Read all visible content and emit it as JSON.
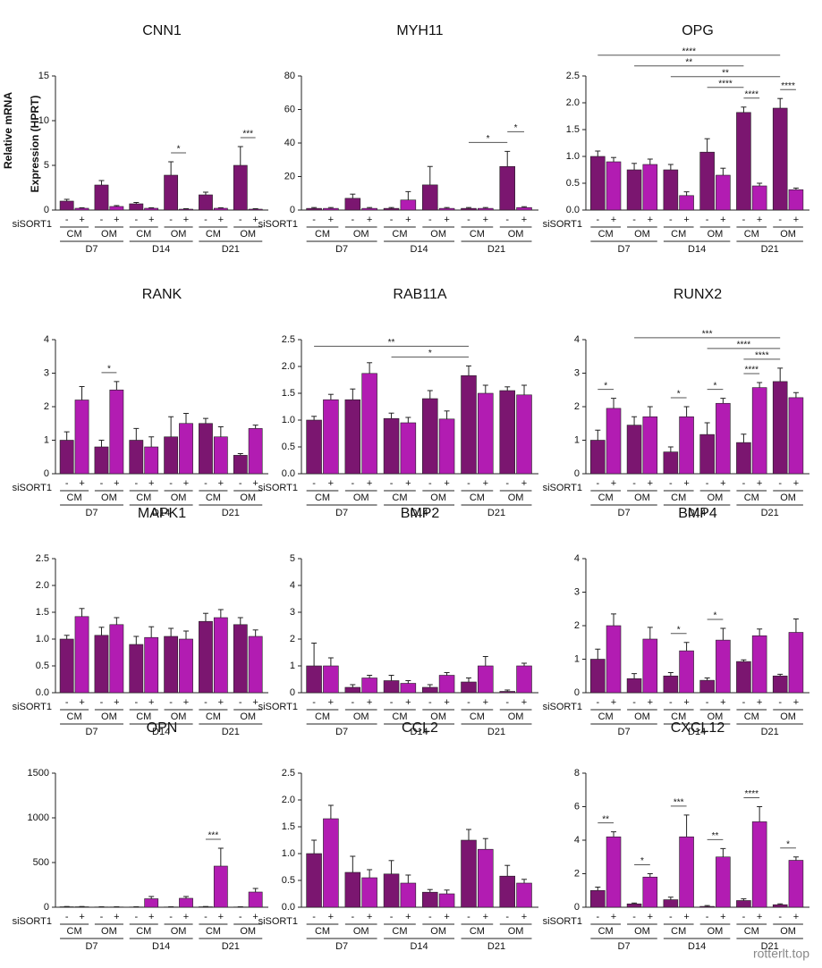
{
  "shared": {
    "row_label": "siSORT1",
    "signs": [
      "-",
      "+"
    ],
    "media": [
      "CM",
      "OM"
    ],
    "days": [
      "D7",
      "D14",
      "D21"
    ],
    "colors": [
      "#7b1670",
      "#b21cb2"
    ],
    "watermark": "rotterlt.top"
  },
  "chart_data": [
    {
      "type": "bar",
      "title": "CNN1",
      "ylabel": [
        "Relative mRNA",
        "Expression (HPRT)"
      ],
      "ylim": [
        0,
        15
      ],
      "yticks": [
        0,
        5,
        10,
        15
      ],
      "values": [
        1.0,
        0.2,
        2.8,
        0.4,
        0.7,
        0.2,
        3.9,
        0.1,
        1.7,
        0.2,
        5.0,
        0.1
      ],
      "errors": [
        0.2,
        0.05,
        0.5,
        0.1,
        0.15,
        0.05,
        1.5,
        0.05,
        0.3,
        0.05,
        2.1,
        0.05
      ],
      "significance": [
        {
          "label": "*",
          "from": 6,
          "to": 7
        },
        {
          "label": "***",
          "from": 10,
          "to": 11
        }
      ]
    },
    {
      "type": "bar",
      "title": "MYH11",
      "ylim": [
        0,
        80
      ],
      "yticks": [
        0,
        20,
        40,
        60,
        80
      ],
      "values": [
        1,
        1,
        7,
        1,
        1,
        6,
        15,
        1,
        1,
        1,
        26,
        1.5
      ],
      "errors": [
        0.5,
        0.5,
        2.5,
        0.5,
        0.5,
        5,
        11,
        0.5,
        0.5,
        0.5,
        9,
        0.5
      ],
      "significance": [
        {
          "label": "*",
          "from": 8,
          "to": 10
        },
        {
          "label": "*",
          "from": 10,
          "to": 11
        }
      ]
    },
    {
      "type": "bar",
      "title": "OPG",
      "ylim": [
        0,
        2.5
      ],
      "yticks": [
        {
          "value": 0,
          "label": "0.0"
        },
        0.5,
        {
          "value": 1,
          "label": "1.0"
        },
        1.5,
        {
          "value": 2,
          "label": "2.0"
        },
        2.5
      ],
      "values": [
        1.0,
        0.9,
        0.75,
        0.85,
        0.75,
        0.27,
        1.08,
        0.65,
        1.82,
        0.45,
        1.9,
        0.38
      ],
      "errors": [
        0.1,
        0.08,
        0.12,
        0.1,
        0.1,
        0.07,
        0.25,
        0.13,
        0.1,
        0.05,
        0.18,
        0.03
      ],
      "significance": [
        {
          "label": "****",
          "from": 8,
          "to": 9
        },
        {
          "label": "****",
          "from": 10,
          "to": 11
        },
        {
          "label": "****",
          "from": 6,
          "to": 8
        },
        {
          "label": "**",
          "from": 4,
          "to": 10
        },
        {
          "label": "**",
          "from": 2,
          "to": 8
        },
        {
          "label": "****",
          "from": 0,
          "to": 10
        }
      ]
    },
    {
      "type": "bar",
      "title": "RANK",
      "ylim": [
        0,
        4
      ],
      "yticks": [
        0,
        1,
        2,
        3,
        4
      ],
      "values": [
        1.0,
        2.2,
        0.8,
        2.5,
        1.0,
        0.8,
        1.1,
        1.5,
        1.5,
        1.1,
        0.55,
        1.35
      ],
      "errors": [
        0.25,
        0.4,
        0.2,
        0.25,
        0.35,
        0.3,
        0.6,
        0.3,
        0.15,
        0.3,
        0.05,
        0.1
      ],
      "significance": [
        {
          "label": "*",
          "from": 2,
          "to": 3
        }
      ]
    },
    {
      "type": "bar",
      "title": "RAB11A",
      "ylim": [
        0,
        2.5
      ],
      "yticks": [
        {
          "value": 0,
          "label": "0.0"
        },
        0.5,
        {
          "value": 1,
          "label": "1.0"
        },
        1.5,
        {
          "value": 2,
          "label": "2.0"
        },
        2.5
      ],
      "values": [
        1.0,
        1.38,
        1.38,
        1.87,
        1.03,
        0.95,
        1.4,
        1.02,
        1.83,
        1.5,
        1.55,
        1.47
      ],
      "errors": [
        0.07,
        0.1,
        0.2,
        0.2,
        0.1,
        0.1,
        0.15,
        0.15,
        0.18,
        0.15,
        0.07,
        0.18
      ],
      "significance": [
        {
          "label": "*",
          "from": 4,
          "to": 8
        },
        {
          "label": "**",
          "from": 0,
          "to": 8
        }
      ]
    },
    {
      "type": "bar",
      "title": "RUNX2",
      "ylim": [
        0,
        4
      ],
      "yticks": [
        0,
        1,
        2,
        3,
        4
      ],
      "values": [
        1.0,
        1.95,
        1.45,
        1.7,
        0.65,
        1.7,
        1.17,
        2.1,
        0.93,
        2.57,
        2.75,
        2.27
      ],
      "errors": [
        0.3,
        0.3,
        0.25,
        0.3,
        0.15,
        0.3,
        0.35,
        0.15,
        0.25,
        0.15,
        0.4,
        0.15
      ],
      "significance": [
        {
          "label": "*",
          "from": 0,
          "to": 1
        },
        {
          "label": "*",
          "from": 4,
          "to": 5
        },
        {
          "label": "*",
          "from": 6,
          "to": 7
        },
        {
          "label": "****",
          "from": 8,
          "to": 9
        },
        {
          "label": "****",
          "from": 8,
          "to": 10
        },
        {
          "label": "****",
          "from": 6,
          "to": 10
        },
        {
          "label": "***",
          "from": 2,
          "to": 10
        }
      ]
    },
    {
      "type": "bar",
      "title": "MAPK1",
      "ylim": [
        0,
        2.5
      ],
      "yticks": [
        {
          "value": 0,
          "label": "0.0"
        },
        0.5,
        {
          "value": 1,
          "label": "1.0"
        },
        1.5,
        {
          "value": 2,
          "label": "2.0"
        },
        2.5
      ],
      "values": [
        1.0,
        1.42,
        1.07,
        1.27,
        0.9,
        1.03,
        1.05,
        1.0,
        1.33,
        1.4,
        1.27,
        1.05
      ],
      "errors": [
        0.07,
        0.15,
        0.15,
        0.13,
        0.15,
        0.2,
        0.15,
        0.15,
        0.15,
        0.15,
        0.13,
        0.12
      ],
      "significance": []
    },
    {
      "type": "bar",
      "title": "BMP2",
      "ylim": [
        0,
        5
      ],
      "yticks": [
        0,
        1,
        2,
        3,
        4,
        5
      ],
      "values": [
        1.0,
        1.0,
        0.2,
        0.55,
        0.45,
        0.35,
        0.2,
        0.65,
        0.4,
        1.0,
        0.05,
        1.0
      ],
      "errors": [
        0.85,
        0.3,
        0.1,
        0.1,
        0.2,
        0.1,
        0.1,
        0.1,
        0.15,
        0.35,
        0.05,
        0.1
      ],
      "significance": []
    },
    {
      "type": "bar",
      "title": "BMP4",
      "ylim": [
        0,
        4
      ],
      "yticks": [
        0,
        1,
        2,
        3,
        4
      ],
      "values": [
        1.0,
        2.0,
        0.42,
        1.6,
        0.5,
        1.25,
        0.37,
        1.57,
        0.93,
        1.7,
        0.5,
        1.8
      ],
      "errors": [
        0.3,
        0.35,
        0.15,
        0.35,
        0.1,
        0.25,
        0.07,
        0.35,
        0.05,
        0.2,
        0.05,
        0.4
      ],
      "significance": [
        {
          "label": "*",
          "from": 4,
          "to": 5
        },
        {
          "label": "*",
          "from": 6,
          "to": 7
        }
      ]
    },
    {
      "type": "bar",
      "title": "OPN",
      "ylim": [
        0,
        1500
      ],
      "yticks": [
        0,
        500,
        1000,
        1500
      ],
      "values": [
        5,
        5,
        3,
        3,
        3,
        95,
        3,
        100,
        5,
        460,
        3,
        170
      ],
      "errors": [
        3,
        3,
        2,
        2,
        2,
        25,
        2,
        20,
        3,
        200,
        2,
        40
      ],
      "significance": [
        {
          "label": "***",
          "from": 8,
          "to": 9
        }
      ]
    },
    {
      "type": "bar",
      "title": "CCL2",
      "ylim": [
        0,
        2.5
      ],
      "yticks": [
        {
          "value": 0,
          "label": "0.0"
        },
        0.5,
        {
          "value": 1,
          "label": "1.0"
        },
        1.5,
        {
          "value": 2,
          "label": "2.0"
        },
        2.5
      ],
      "values": [
        1.0,
        1.65,
        0.65,
        0.55,
        0.62,
        0.45,
        0.28,
        0.25,
        1.25,
        1.08,
        0.58,
        0.45
      ],
      "errors": [
        0.25,
        0.25,
        0.3,
        0.15,
        0.25,
        0.15,
        0.05,
        0.07,
        0.2,
        0.2,
        0.2,
        0.07
      ],
      "significance": []
    },
    {
      "type": "bar",
      "title": "CXCL12",
      "ylim": [
        0,
        8
      ],
      "yticks": [
        0,
        2,
        4,
        6,
        8
      ],
      "values": [
        1.0,
        4.2,
        0.2,
        1.8,
        0.45,
        4.2,
        0.05,
        3.0,
        0.4,
        5.1,
        0.15,
        2.8
      ],
      "errors": [
        0.2,
        0.3,
        0.05,
        0.2,
        0.15,
        1.3,
        0.05,
        0.5,
        0.1,
        0.9,
        0.05,
        0.2
      ],
      "significance": [
        {
          "label": "**",
          "from": 0,
          "to": 1
        },
        {
          "label": "*",
          "from": 2,
          "to": 3
        },
        {
          "label": "***",
          "from": 4,
          "to": 5
        },
        {
          "label": "**",
          "from": 6,
          "to": 7
        },
        {
          "label": "****",
          "from": 8,
          "to": 9
        },
        {
          "label": "*",
          "from": 10,
          "to": 11
        }
      ]
    }
  ]
}
